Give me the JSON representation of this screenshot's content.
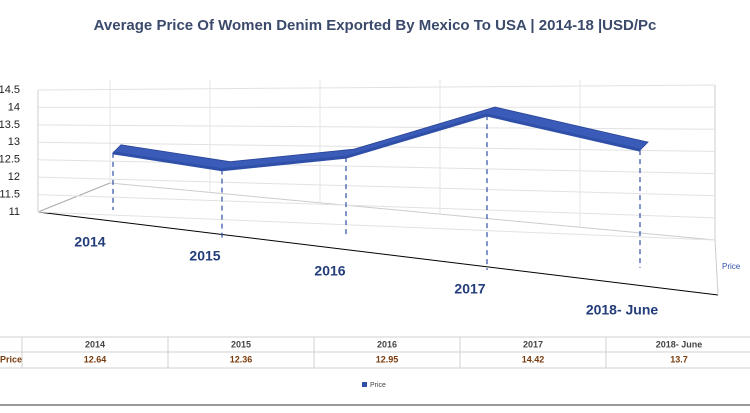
{
  "chart_data": {
    "type": "line",
    "title": "Average Price Of Women Denim Exported By Mexico To USA | 2014-18 |USD/Pc",
    "categories": [
      "2014",
      "2015",
      "2016",
      "2017",
      "2018- June"
    ],
    "series": [
      {
        "name": "Price",
        "color": "#2f4fa8",
        "values": [
          12.64,
          12.36,
          12.95,
          14.42,
          13.7
        ]
      }
    ],
    "ylim": [
      11,
      14.5
    ],
    "yticks": [
      11,
      11.5,
      12,
      12.5,
      13,
      13.5,
      14,
      14.5
    ],
    "grid": true
  }
}
